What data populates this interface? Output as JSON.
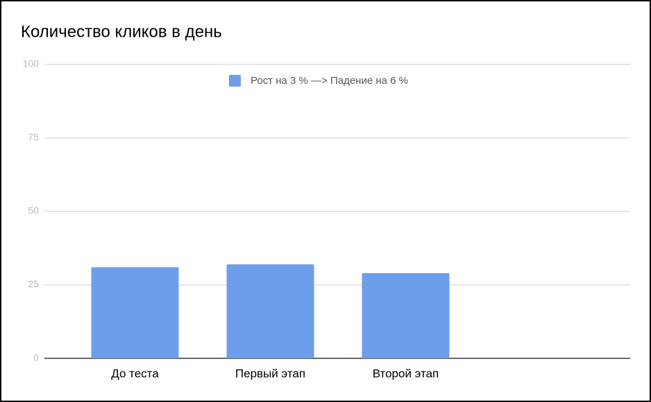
{
  "chart_data": {
    "type": "bar",
    "title": "Количество кликов в день",
    "categories": [
      "До теста",
      "Первый этап",
      "Второй этап"
    ],
    "series": [
      {
        "name": "Рост на 3 % —> Падение на 6 %",
        "color": "#6d9eeb",
        "values": [
          31,
          32,
          29
        ]
      }
    ],
    "ylim": [
      0,
      100
    ],
    "yticks": [
      0,
      25,
      50,
      75,
      100
    ],
    "grid": true,
    "legend": "top"
  }
}
